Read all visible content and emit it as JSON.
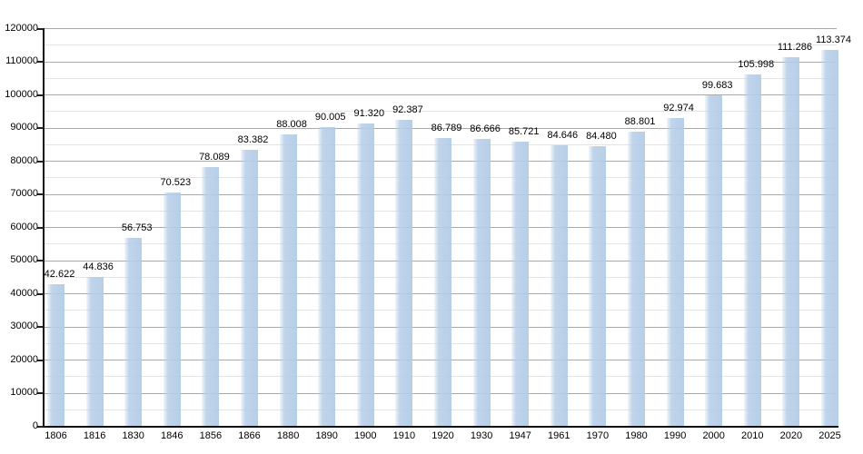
{
  "chart_data": {
    "type": "bar",
    "title": "",
    "xlabel": "",
    "ylabel": "",
    "categories": [
      "1806",
      "1816",
      "1830",
      "1846",
      "1856",
      "1866",
      "1880",
      "1890",
      "1900",
      "1910",
      "1920",
      "1930",
      "1947",
      "1961",
      "1970",
      "1980",
      "1990",
      "2000",
      "2010",
      "2020",
      "2025"
    ],
    "values": [
      42622,
      44836,
      56753,
      70523,
      78089,
      83382,
      88008,
      90005,
      91320,
      92387,
      86789,
      86666,
      85721,
      84646,
      84480,
      88801,
      92974,
      99683,
      105998,
      111286,
      113374
    ],
    "bar_value_labels": [
      "42.622",
      "44.836",
      "56.753",
      "70.523",
      "78.089",
      "83.382",
      "88.008",
      "90.005",
      "91.320",
      "92.387",
      "86.789",
      "86.666",
      "85.721",
      "84.646",
      "84.480",
      "88.801",
      "92.974",
      "99.683",
      "105.998",
      "111.286",
      "113.374"
    ],
    "ylim": [
      0,
      120000
    ],
    "y_major_step": 10000,
    "y_minor_step": 5000,
    "y_tick_labels": [
      "0",
      "10000",
      "20000",
      "30000",
      "40000",
      "50000",
      "60000",
      "70000",
      "80000",
      "90000",
      "100000",
      "110000",
      "120000"
    ],
    "grid": "on",
    "legend_position": "none",
    "colors": {
      "bar_fill": "#b7cfe8",
      "grid_major": "#a9a9a9",
      "grid_minor": "#e4e4e4",
      "axis": "#111111",
      "text": "#000000",
      "background": "#ffffff"
    }
  }
}
